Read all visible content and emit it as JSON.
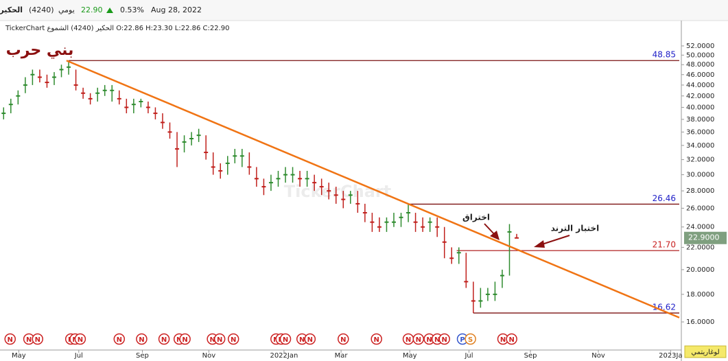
{
  "header": {
    "symbol_name": "الحكير",
    "symbol_code": "(4240)",
    "period": "يومي",
    "last": "22.90",
    "change": "0.53%",
    "date": "Aug 28, 2022",
    "ohlc_line": "TickerChart الحكير (4240) الشموع O:22.86 H:23.30 L:22.86 C:22.90"
  },
  "chart_data": {
    "type": "candlestick",
    "title": "بني حرب",
    "watermark": "TickerChart",
    "log_scale": true,
    "scale_button": "لوغاريتمي",
    "close": [
      39,
      40.5,
      42,
      44,
      46,
      45.5,
      44.5,
      45.5,
      47,
      47.5,
      44,
      42.5,
      41.5,
      42.5,
      43,
      43,
      41.5,
      40,
      40.5,
      41,
      40,
      39,
      37.5,
      36,
      33.5,
      34.5,
      35,
      35.5,
      33,
      31,
      30.5,
      31.5,
      32.5,
      32.5,
      31,
      29.5,
      28.5,
      29,
      29.5,
      30,
      30,
      29.5,
      29.5,
      29,
      28.5,
      28,
      27.5,
      27,
      27.5,
      26.5,
      25.5,
      24.5,
      24,
      24.5,
      24.5,
      25,
      25.5,
      24.5,
      24,
      24.5,
      24,
      22.5,
      21,
      21.5,
      19,
      17.5,
      17.5,
      18,
      18,
      19.5,
      23.5,
      22.9
    ],
    "high": [
      40,
      41.5,
      43,
      45.5,
      47,
      47,
      46,
      46.5,
      48,
      48.85,
      47,
      43.5,
      42.5,
      43.5,
      44,
      44,
      43,
      41.5,
      41.5,
      41.5,
      41,
      40,
      39,
      37.5,
      36,
      35.5,
      36,
      36.5,
      35.5,
      33,
      31.5,
      32.5,
      33.5,
      33.5,
      33,
      31,
      29.5,
      30,
      30.5,
      31,
      31,
      30.5,
      30.5,
      30,
      29.5,
      29,
      28.5,
      28,
      28,
      28,
      26.5,
      25.5,
      25,
      25,
      25.5,
      25.5,
      26.46,
      25.5,
      25,
      25,
      25,
      24,
      22,
      22,
      21.5,
      19,
      18.5,
      18.5,
      19,
      20,
      24.3,
      23.3
    ],
    "low": [
      38,
      39,
      40.5,
      42.5,
      44,
      44.5,
      43.5,
      44,
      45.5,
      46,
      43,
      41.5,
      40.5,
      41,
      42,
      41,
      40.5,
      39,
      39,
      40,
      39,
      38,
      36.5,
      35,
      31,
      33,
      34,
      34.5,
      32,
      30,
      29.5,
      30,
      31.5,
      31,
      30,
      28.5,
      27.5,
      28,
      28.5,
      29,
      29,
      28.5,
      28.5,
      28,
      27.5,
      27,
      26.5,
      26,
      26.5,
      25.5,
      24.5,
      23.5,
      23.5,
      23.5,
      24,
      24,
      24.5,
      23.5,
      23.5,
      23.5,
      23,
      21,
      20.5,
      20.5,
      18.5,
      16.62,
      17,
      17.5,
      17.5,
      18.5,
      19.5,
      22.86
    ],
    "up_color": "#2e8b2e",
    "down_color": "#c0201c",
    "xlim": [
      -0.5,
      93.5
    ],
    "xticks": [
      {
        "value": 2.1,
        "label": "May"
      },
      {
        "value": 10.4,
        "label": "Jul"
      },
      {
        "value": 19.2,
        "label": "Sep"
      },
      {
        "value": 28.4,
        "label": "Nov"
      },
      {
        "value": 38.8,
        "label": "2022Jan"
      },
      {
        "value": 46.7,
        "label": "Mar"
      },
      {
        "value": 56.2,
        "label": "May"
      },
      {
        "value": 64.4,
        "label": "Jul"
      },
      {
        "value": 72.9,
        "label": "Sep"
      },
      {
        "value": 82.3,
        "label": "Nov"
      },
      {
        "value": 92.3,
        "label": "2023Ja"
      }
    ],
    "ylim": [
      14.4,
      57.1
    ],
    "yticks": [
      {
        "value": 16,
        "label": "16.0000"
      },
      {
        "value": 18,
        "label": "18.0000"
      },
      {
        "value": 20,
        "label": "20.0000"
      },
      {
        "value": 22,
        "label": "22.0000"
      },
      {
        "value": 24,
        "label": "24.0000"
      },
      {
        "value": 26,
        "label": "26.0000"
      },
      {
        "value": 28,
        "label": "28.0000"
      },
      {
        "value": 30,
        "label": "30.0000"
      },
      {
        "value": 32,
        "label": "32.0000"
      },
      {
        "value": 34,
        "label": "34.0000"
      },
      {
        "value": 36,
        "label": "36.0000"
      },
      {
        "value": 38,
        "label": "38.0000"
      },
      {
        "value": 40,
        "label": "40.0000"
      },
      {
        "value": 42,
        "label": "42.0000"
      },
      {
        "value": 44,
        "label": "44.0000"
      },
      {
        "value": 46,
        "label": "46.0000"
      },
      {
        "value": 48,
        "label": "48.0000"
      },
      {
        "value": 50,
        "label": "50.0000"
      },
      {
        "value": 52,
        "label": "52.0000"
      }
    ],
    "last_price": {
      "value": 22.9,
      "label": "22.9000"
    },
    "last_price_color": "#7f9f7f",
    "levels": [
      {
        "value": 48.85,
        "from": 9,
        "color": "#7a1010",
        "label_color": "#2020c8"
      },
      {
        "value": 26.46,
        "from": 56,
        "color": "#7a1010",
        "label_color": "#2020c8"
      },
      {
        "value": 21.7,
        "label": "21.70",
        "from": 62.7,
        "color": "#b02020",
        "label_color": "#c82020"
      },
      {
        "value": 16.62,
        "from": 65,
        "color": "#7a1010",
        "label_color": "#2020c8"
      }
    ],
    "trendline": {
      "x": [
        8.7,
        93.5
      ],
      "y": [
        48.85,
        16.3
      ],
      "color": "#f07414"
    },
    "annotations": [
      {
        "text": "اختراق"
      },
      {
        "text": "اختبار الترند"
      }
    ],
    "events": {
      "x": [
        0.9,
        3.5,
        4.7,
        9.3,
        9.9,
        10.6,
        16.0,
        19.1,
        22.2,
        24.3,
        25.1,
        28.9,
        29.9,
        31.8,
        37.7,
        38.4,
        39.0,
        41.3,
        42.4,
        47.0,
        51.6,
        56.0,
        57.4,
        58.9,
        60.0,
        61.0,
        63.5,
        64.6,
        69.1,
        70.3
      ],
      "labels": [
        "N",
        "N",
        "N",
        "N",
        "N",
        "N",
        "N",
        "N",
        "N",
        "N",
        "N",
        "N",
        "N",
        "N",
        "N",
        "N",
        "N",
        "N",
        "N",
        "N",
        "N",
        "N",
        "N",
        "N",
        "N",
        "N",
        "P",
        "S",
        "N",
        "N"
      ],
      "colors": [
        "#cc2222",
        "#cc2222",
        "#cc2222",
        "#cc2222",
        "#cc2222",
        "#cc2222",
        "#cc2222",
        "#cc2222",
        "#cc2222",
        "#cc2222",
        "#cc2222",
        "#cc2222",
        "#cc2222",
        "#cc2222",
        "#cc2222",
        "#cc2222",
        "#cc2222",
        "#cc2222",
        "#cc2222",
        "#cc2222",
        "#cc2222",
        "#cc2222",
        "#cc2222",
        "#cc2222",
        "#cc2222",
        "#cc2222",
        "#3355cc",
        "#e08020",
        "#cc2222",
        "#cc2222"
      ]
    }
  }
}
